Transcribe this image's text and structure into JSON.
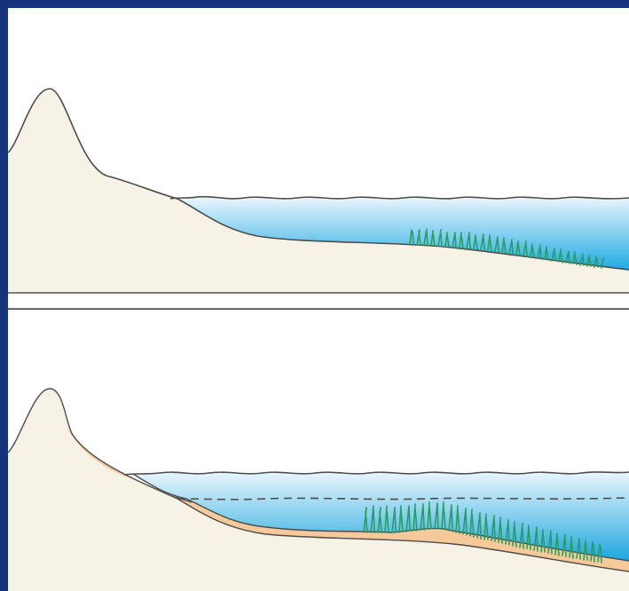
{
  "colors": {
    "frame": "#14337a",
    "background": "#ffffff",
    "land": "#f7f2e6",
    "land_outline": "#4d4d4d",
    "sediment": "#f6c99a",
    "water_top": "#e9f6fd",
    "water_bottom": "#1eaae2",
    "seagrass": "#2a9e5e",
    "divider": "#555555"
  },
  "panels": [
    {
      "name": "present-profile",
      "features": [
        "dune",
        "water",
        "seagrass"
      ]
    },
    {
      "name": "future-profile",
      "features": [
        "dune",
        "sediment-layer",
        "water",
        "former-water-level-dashed",
        "seagrass"
      ]
    }
  ]
}
